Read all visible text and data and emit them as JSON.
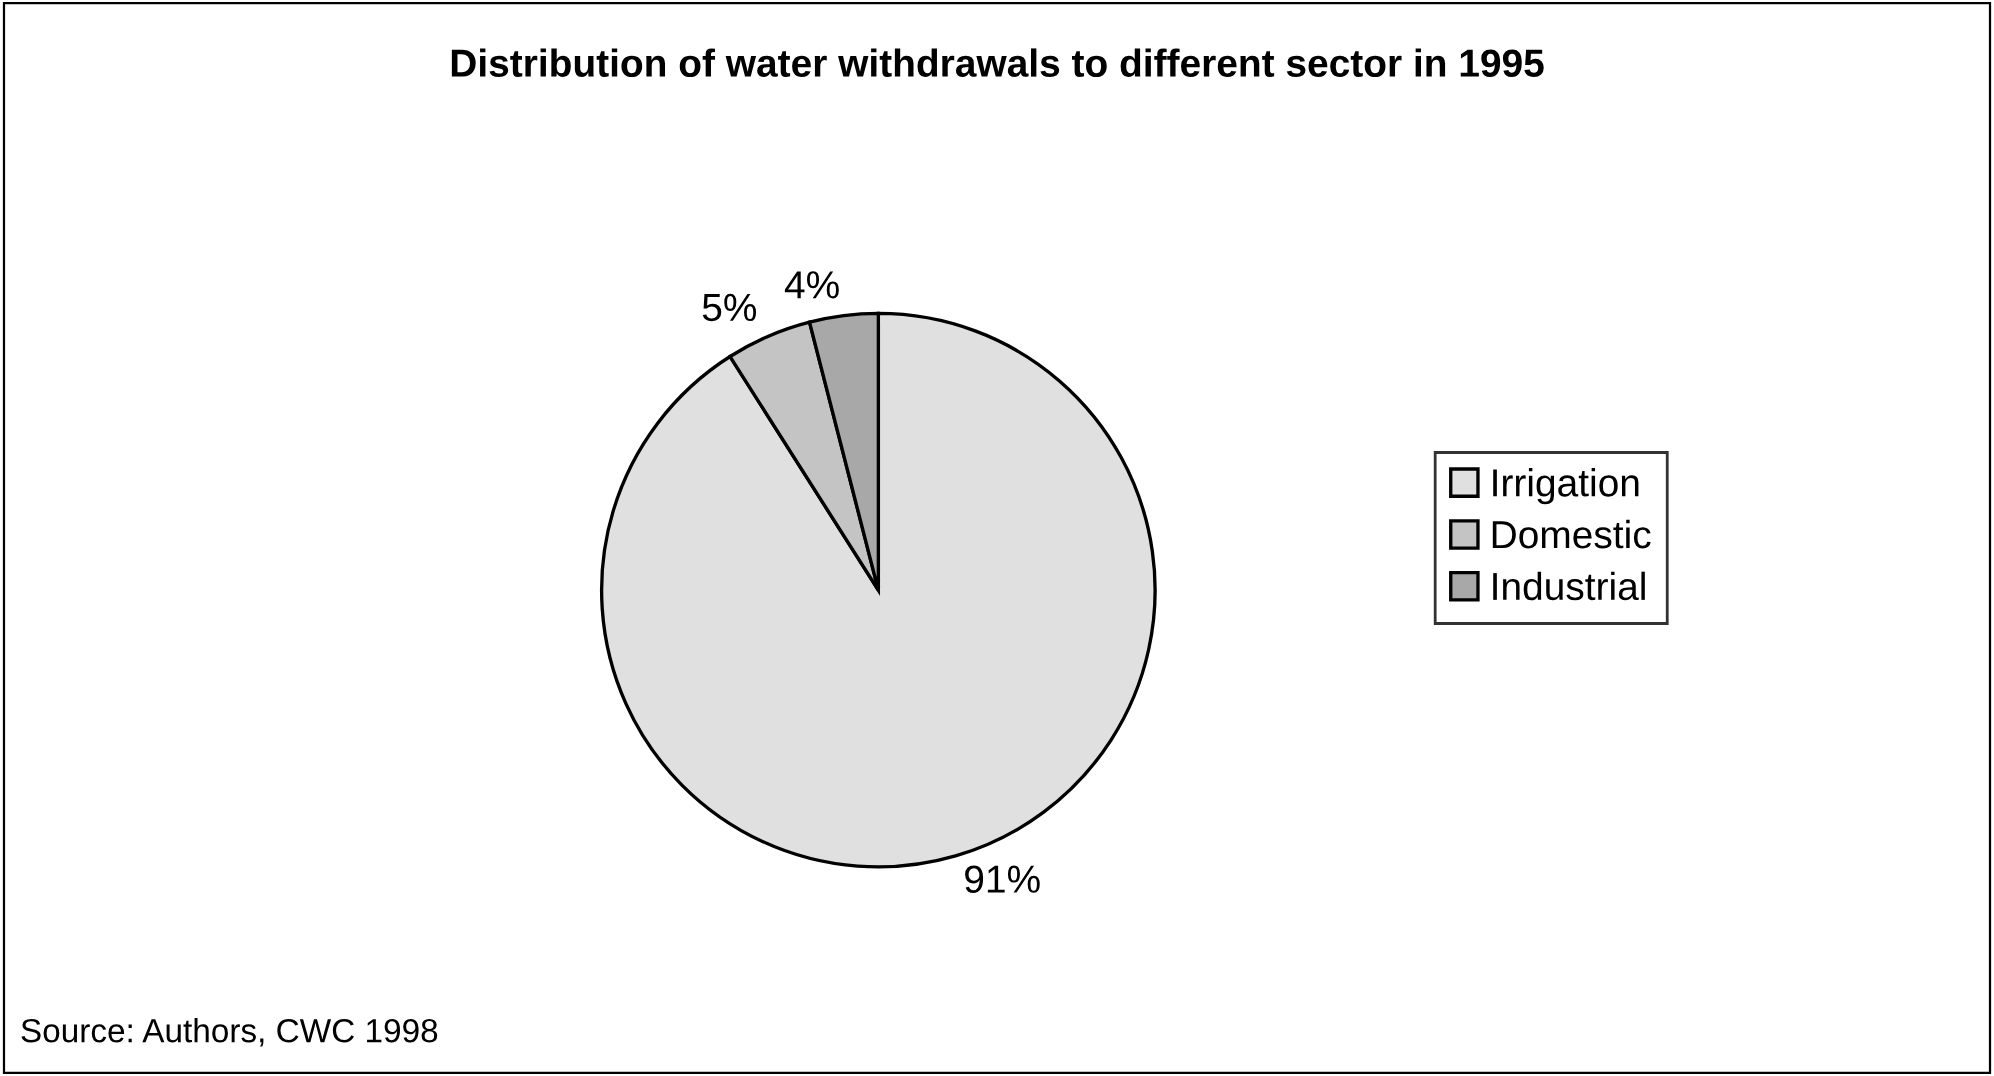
{
  "chart_data": {
    "type": "pie",
    "title": "Distribution of water withdrawals to different sector in 1995",
    "categories": [
      "Irrigation",
      "Domestic",
      "Industrial"
    ],
    "values": [
      91,
      5,
      4
    ],
    "colors": [
      "#e0e0e0",
      "#c4c4c4",
      "#a8a8a8"
    ],
    "value_labels": [
      "91%",
      "5%",
      "4%"
    ],
    "legend": "right",
    "annotations": [
      "Source: Authors, CWC 1998"
    ]
  }
}
